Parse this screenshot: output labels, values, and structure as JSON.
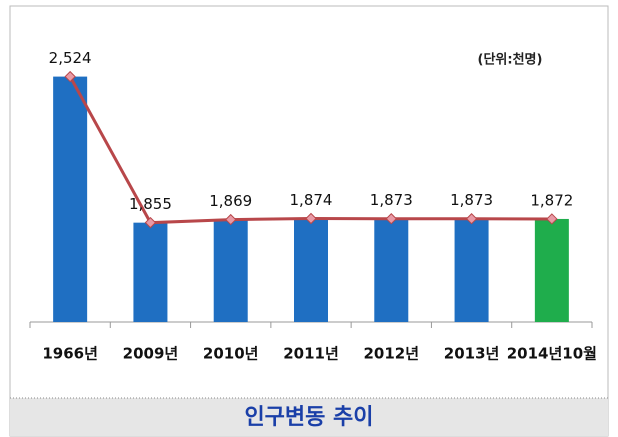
{
  "chart_data": {
    "type": "bar",
    "title": "인구변동 추이",
    "unit_label": "(단위:천명)",
    "categories": [
      "1966년",
      "2009년",
      "2010년",
      "2011년",
      "2012년",
      "2013년",
      "2014년10월"
    ],
    "values": [
      2524,
      1855,
      1869,
      1874,
      1873,
      1873,
      1872
    ],
    "value_labels": [
      "2,524",
      "1,855",
      "1,869",
      "1,874",
      "1,873",
      "1,873",
      "1,872"
    ],
    "colors": [
      "#1f6fc2",
      "#1f6fc2",
      "#1f6fc2",
      "#1f6fc2",
      "#1f6fc2",
      "#1f6fc2",
      "#1fad4c"
    ],
    "line_color": "#b8474a",
    "marker_color": "#e89aa6",
    "ylim": [
      1400,
      2600
    ]
  }
}
